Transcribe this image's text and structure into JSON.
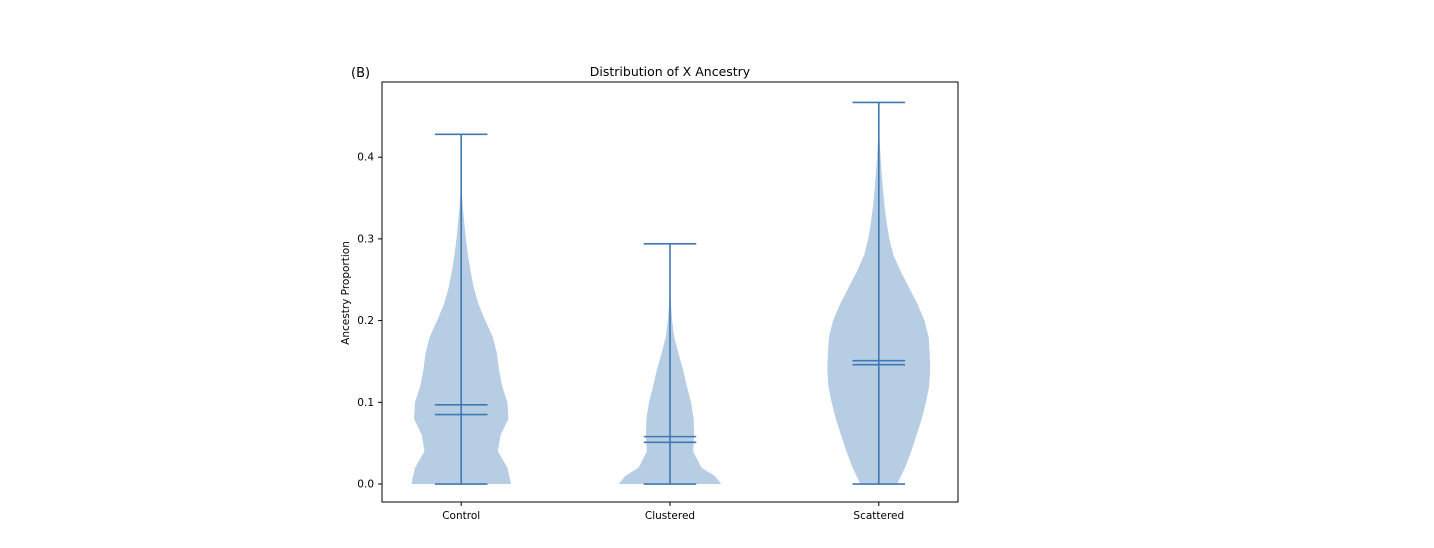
{
  "panel_label": "(B)",
  "chart_data": {
    "type": "violin",
    "title": "Distribution of X Ancestry",
    "xlabel": "",
    "ylabel": "Ancestry Proportion",
    "categories": [
      "Control",
      "Clustered",
      "Scattered"
    ],
    "ylim": [
      -0.022,
      0.492
    ],
    "yticks": [
      "0.0",
      "0.1",
      "0.2",
      "0.3",
      "0.4"
    ],
    "grid": false,
    "colors": {
      "body": "#b6cde3",
      "lines": "#3f78b2"
    },
    "violins": [
      {
        "name": "Control",
        "min": 0.0,
        "max": 0.428,
        "mean": 0.097,
        "median": 0.085,
        "density": [
          [
            0.0,
            0.95
          ],
          [
            0.02,
            0.88
          ],
          [
            0.04,
            0.7
          ],
          [
            0.06,
            0.75
          ],
          [
            0.08,
            0.9
          ],
          [
            0.1,
            0.88
          ],
          [
            0.12,
            0.78
          ],
          [
            0.14,
            0.72
          ],
          [
            0.16,
            0.68
          ],
          [
            0.18,
            0.6
          ],
          [
            0.2,
            0.46
          ],
          [
            0.22,
            0.33
          ],
          [
            0.24,
            0.24
          ],
          [
            0.26,
            0.18
          ],
          [
            0.28,
            0.13
          ],
          [
            0.3,
            0.09
          ],
          [
            0.32,
            0.06
          ],
          [
            0.34,
            0.03
          ],
          [
            0.36,
            0.01
          ],
          [
            0.38,
            0.0
          ]
        ]
      },
      {
        "name": "Clustered",
        "min": 0.0,
        "max": 0.294,
        "mean": 0.058,
        "median": 0.051,
        "density": [
          [
            0.0,
            0.98
          ],
          [
            0.01,
            0.85
          ],
          [
            0.02,
            0.6
          ],
          [
            0.04,
            0.44
          ],
          [
            0.06,
            0.46
          ],
          [
            0.08,
            0.45
          ],
          [
            0.1,
            0.4
          ],
          [
            0.12,
            0.32
          ],
          [
            0.14,
            0.25
          ],
          [
            0.16,
            0.16
          ],
          [
            0.18,
            0.08
          ],
          [
            0.2,
            0.04
          ],
          [
            0.22,
            0.02
          ],
          [
            0.24,
            0.0
          ]
        ]
      },
      {
        "name": "Scattered",
        "min": 0.0,
        "max": 0.467,
        "mean": 0.151,
        "median": 0.146,
        "density": [
          [
            0.0,
            0.35
          ],
          [
            0.02,
            0.5
          ],
          [
            0.04,
            0.62
          ],
          [
            0.06,
            0.72
          ],
          [
            0.08,
            0.82
          ],
          [
            0.1,
            0.9
          ],
          [
            0.12,
            0.96
          ],
          [
            0.14,
            0.98
          ],
          [
            0.16,
            0.97
          ],
          [
            0.18,
            0.95
          ],
          [
            0.2,
            0.87
          ],
          [
            0.22,
            0.74
          ],
          [
            0.24,
            0.58
          ],
          [
            0.26,
            0.42
          ],
          [
            0.28,
            0.28
          ],
          [
            0.3,
            0.2
          ],
          [
            0.32,
            0.15
          ],
          [
            0.34,
            0.11
          ],
          [
            0.36,
            0.08
          ],
          [
            0.38,
            0.055
          ],
          [
            0.4,
            0.035
          ],
          [
            0.42,
            0.015
          ],
          [
            0.44,
            0.0
          ]
        ]
      }
    ]
  }
}
